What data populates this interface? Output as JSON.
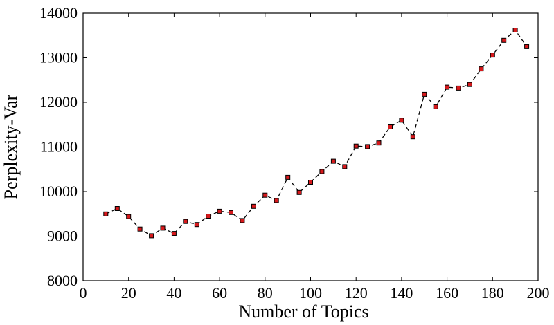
{
  "chart_data": {
    "type": "line",
    "title": "",
    "xlabel": "Number of Topics",
    "ylabel": "Perplexity-Var",
    "xlim": [
      0,
      200
    ],
    "ylim": [
      8000,
      14000
    ],
    "xticks": [
      0,
      20,
      40,
      60,
      80,
      100,
      120,
      140,
      160,
      180,
      200
    ],
    "yticks": [
      8000,
      9000,
      10000,
      11000,
      12000,
      13000,
      14000
    ],
    "grid": false,
    "legend": "none",
    "colors": {
      "marker_fill": "#d7191c",
      "line": "#000000"
    },
    "line_style": "dashed",
    "marker": "square",
    "x": [
      10,
      15,
      20,
      25,
      30,
      35,
      40,
      45,
      50,
      55,
      60,
      65,
      70,
      75,
      80,
      85,
      90,
      95,
      100,
      105,
      110,
      115,
      120,
      125,
      130,
      135,
      140,
      145,
      150,
      155,
      160,
      165,
      170,
      175,
      180,
      185,
      190,
      195
    ],
    "y": [
      9500,
      9620,
      9440,
      9160,
      9010,
      9180,
      9060,
      9330,
      9260,
      9450,
      9560,
      9530,
      9350,
      9670,
      9920,
      9800,
      10320,
      9980,
      10210,
      10450,
      10680,
      10560,
      11020,
      11010,
      11090,
      11450,
      11600,
      11230,
      12180,
      11900,
      12340,
      12320,
      12400,
      12750,
      13060,
      13390,
      13620,
      13250
    ]
  }
}
